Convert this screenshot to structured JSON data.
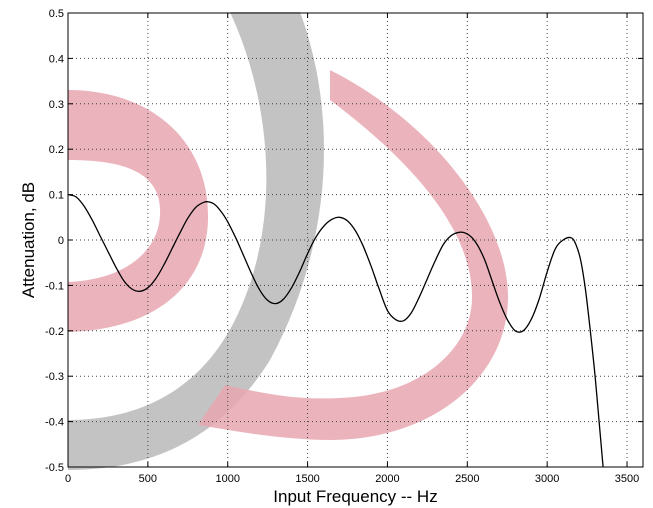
{
  "chart_data": {
    "type": "line",
    "title": "",
    "xlabel": "Input Frequency -- Hz",
    "ylabel": "Attenuation, dB",
    "xlim": [
      0,
      3600
    ],
    "ylim": [
      -0.5,
      0.5
    ],
    "xticks": [
      0,
      500,
      1000,
      1500,
      2000,
      2500,
      3000,
      3500
    ],
    "yticks": [
      -0.5,
      -0.4,
      -0.3,
      -0.2,
      -0.1,
      0,
      0.1,
      0.2,
      0.3,
      0.4,
      0.5
    ],
    "xtick_labels": [
      "0",
      "500",
      "1000",
      "1500",
      "2000",
      "2500",
      "3000",
      "3500"
    ],
    "ytick_labels": [
      "-0.5",
      "-0.4",
      "-0.3",
      "-0.2",
      "-0.1",
      "0",
      "0.1",
      "0.2",
      "0.3",
      "0.4",
      "0.5"
    ],
    "grid": true,
    "legend": "none",
    "series": [
      {
        "color": "#000000",
        "x": [
          0,
          50,
          100,
          150,
          200,
          250,
          300,
          350,
          400,
          450,
          500,
          550,
          600,
          650,
          700,
          750,
          800,
          850,
          880,
          920,
          960,
          1000,
          1050,
          1100,
          1150,
          1200,
          1250,
          1300,
          1350,
          1400,
          1450,
          1500,
          1550,
          1600,
          1650,
          1700,
          1750,
          1800,
          1850,
          1900,
          1950,
          2000,
          2050,
          2100,
          2150,
          2200,
          2250,
          2300,
          2350,
          2400,
          2450,
          2490,
          2530,
          2570,
          2610,
          2650,
          2700,
          2750,
          2800,
          2850,
          2900,
          2950,
          3000,
          3050,
          3100,
          3150,
          3180,
          3210,
          3240,
          3270,
          3300,
          3330,
          3350
        ],
        "y": [
          0.1,
          0.095,
          0.075,
          0.045,
          0.01,
          -0.025,
          -0.06,
          -0.09,
          -0.108,
          -0.113,
          -0.105,
          -0.085,
          -0.055,
          -0.02,
          0.015,
          0.048,
          0.072,
          0.083,
          0.084,
          0.078,
          0.062,
          0.04,
          0.005,
          -0.035,
          -0.075,
          -0.11,
          -0.133,
          -0.14,
          -0.13,
          -0.105,
          -0.07,
          -0.03,
          0.005,
          0.03,
          0.045,
          0.05,
          0.042,
          0.02,
          -0.015,
          -0.06,
          -0.11,
          -0.155,
          -0.175,
          -0.178,
          -0.16,
          -0.125,
          -0.085,
          -0.045,
          -0.01,
          0.01,
          0.017,
          0.015,
          0.005,
          -0.015,
          -0.045,
          -0.085,
          -0.135,
          -0.175,
          -0.2,
          -0.2,
          -0.175,
          -0.13,
          -0.07,
          -0.02,
          0.0,
          0.005,
          -0.01,
          -0.045,
          -0.11,
          -0.2,
          -0.3,
          -0.42,
          -0.5
        ]
      }
    ]
  }
}
